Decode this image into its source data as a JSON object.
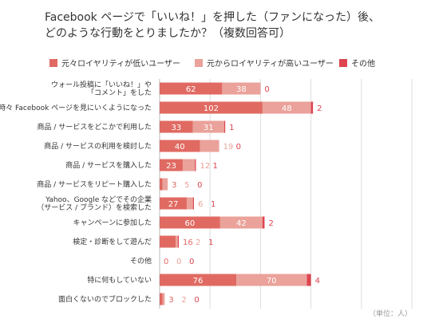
{
  "title_line1": "Facebook ページで「いいね！」を押した（ファンになった）後、",
  "title_line2": "どのような行動をとりましたか？（複数回答可）",
  "unit": "（単位：人）",
  "chart_data": {
    "type": "bar",
    "orientation": "horizontal",
    "stacked": true,
    "categories": [
      [
        "ウォール投稿に「いいね！」や",
        "「コメント」をした"
      ],
      [
        "時々 Facebook ページを見にいくようになった"
      ],
      [
        "商品 / サービスをどこかで利用した"
      ],
      [
        "商品 / サービスの利用を検討した"
      ],
      [
        "商品 / サービスを購入した"
      ],
      [
        "商品 / サービスをリピート購入した"
      ],
      [
        "Yahoo、Google などでその企業",
        "（サービス / ブランド）を検索した"
      ],
      [
        "キャンペーンに参加した"
      ],
      [
        "検定・診断をして遊んだ"
      ],
      [
        "その他"
      ],
      [
        "特に何もしていない"
      ],
      [
        "面白くないのでブロックした"
      ]
    ],
    "series": [
      {
        "name": "元々ロイヤリティが低いユーザー",
        "color": "#e06a62",
        "values": [
          62,
          102,
          33,
          40,
          23,
          3,
          27,
          60,
          16,
          0,
          76,
          3
        ]
      },
      {
        "name": "元からロイヤリティが高いユーザー",
        "color": "#eaa29a",
        "values": [
          38,
          48,
          31,
          19,
          12,
          5,
          6,
          42,
          2,
          0,
          70,
          2
        ]
      },
      {
        "name": "その他",
        "color": "#dd4450",
        "values": [
          0,
          2,
          1,
          0,
          1,
          0,
          1,
          2,
          1,
          0,
          4,
          0
        ]
      }
    ],
    "xlim": [
      0,
      250
    ],
    "grid": true,
    "legend_position": "top"
  }
}
